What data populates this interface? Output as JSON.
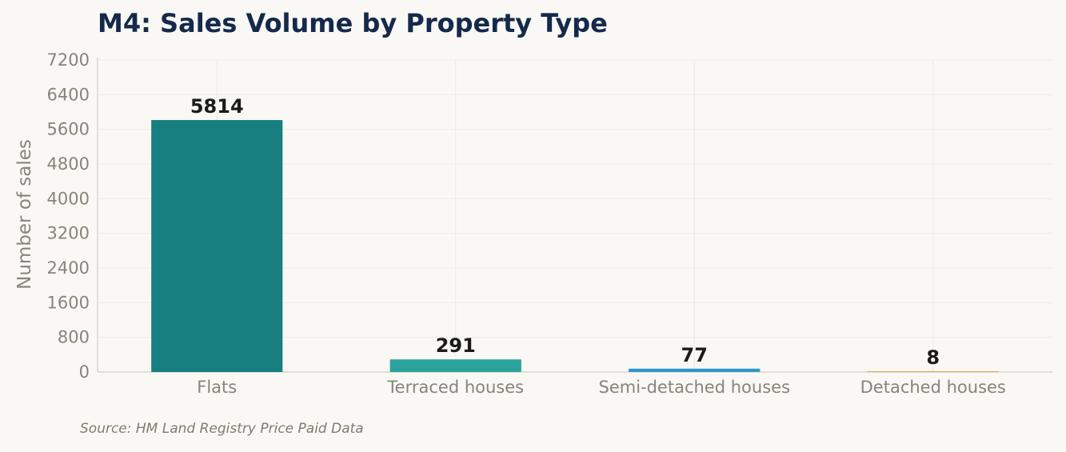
{
  "title": "M4: Sales Volume by Property Type",
  "source": "Source: HM Land Registry Price Paid Data",
  "colors": {
    "background": "#f9f8f4",
    "title": "#14294b",
    "grid": "#ecebe6",
    "axis": "#d9d6cc"
  },
  "chart_data": {
    "type": "bar",
    "title": "M4: Sales Volume by Property Type",
    "xlabel": "",
    "ylabel": "Number of sales",
    "categories": [
      "Flats",
      "Terraced houses",
      "Semi-detached houses",
      "Detached houses"
    ],
    "values": [
      5814,
      291,
      77,
      8
    ],
    "data_labels": [
      "5814",
      "291",
      "77",
      "8"
    ],
    "bar_colors": [
      "#177f7f",
      "#2aa39c",
      "#2f96cc",
      "#e0a84a"
    ],
    "ylim": [
      0,
      7200
    ],
    "yticks": [
      0,
      800,
      1600,
      2400,
      3200,
      4000,
      4800,
      5600,
      6400,
      7200
    ],
    "grid": true,
    "legend": "none"
  }
}
